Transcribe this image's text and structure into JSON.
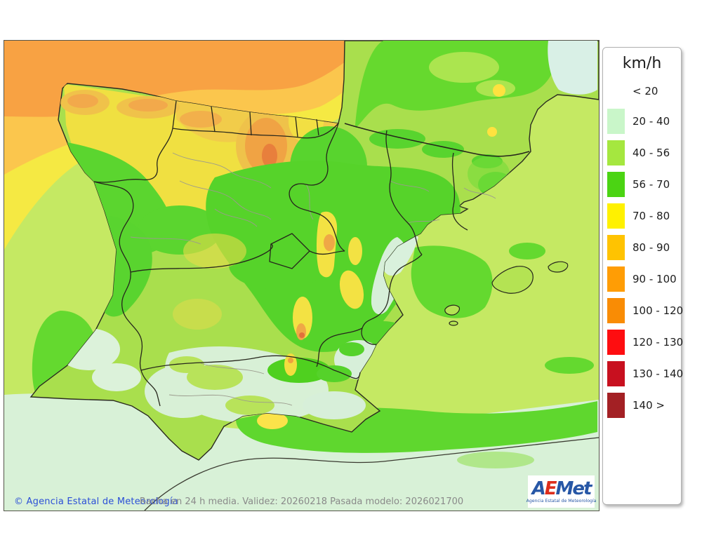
{
  "legend": {
    "title": "km/h",
    "entries": [
      {
        "label": "< 20",
        "color": ""
      },
      {
        "label": "20 - 40",
        "color": "#c9f6c9"
      },
      {
        "label": "40 - 56",
        "color": "#a5e73f"
      },
      {
        "label": "56 - 70",
        "color": "#4bd413"
      },
      {
        "label": "70 - 80",
        "color": "#fff100"
      },
      {
        "label": "80 - 90",
        "color": "#ffc301"
      },
      {
        "label": "90 - 100",
        "color": "#ff9d05"
      },
      {
        "label": "100 - 120",
        "color": "#f98c05"
      },
      {
        "label": "120 - 130",
        "color": "#fe0d10"
      },
      {
        "label": "130 - 140",
        "color": "#c8101f"
      },
      {
        "label": "140 >",
        "color": "#a32024"
      }
    ]
  },
  "map": {
    "attribution": "© Agencia Estatal de Meteorología",
    "caption": "Racha en 24 h media. Validez: 20260218 Pasada modelo: 2026021700",
    "logo": {
      "part1": "A",
      "part2": "E",
      "part3": "Met",
      "subtitle": "Agencia Estatal de Meteorología"
    }
  },
  "colors": {
    "attribution_text": "#2b4fd7",
    "caption_text": "#8a8a8a",
    "logo_blue": "#2757a6",
    "logo_red": "#dd2e1c",
    "sea_orange": "#f8a243",
    "sea_amber": "#fbc64d",
    "sea_yellow": "#f5e943",
    "sea_yellowgreen": "#c5e963",
    "sea_green": "#5cd72e",
    "sea_mint": "#d8f1d7",
    "land_yellowgreen": "#a9df4d"
  }
}
